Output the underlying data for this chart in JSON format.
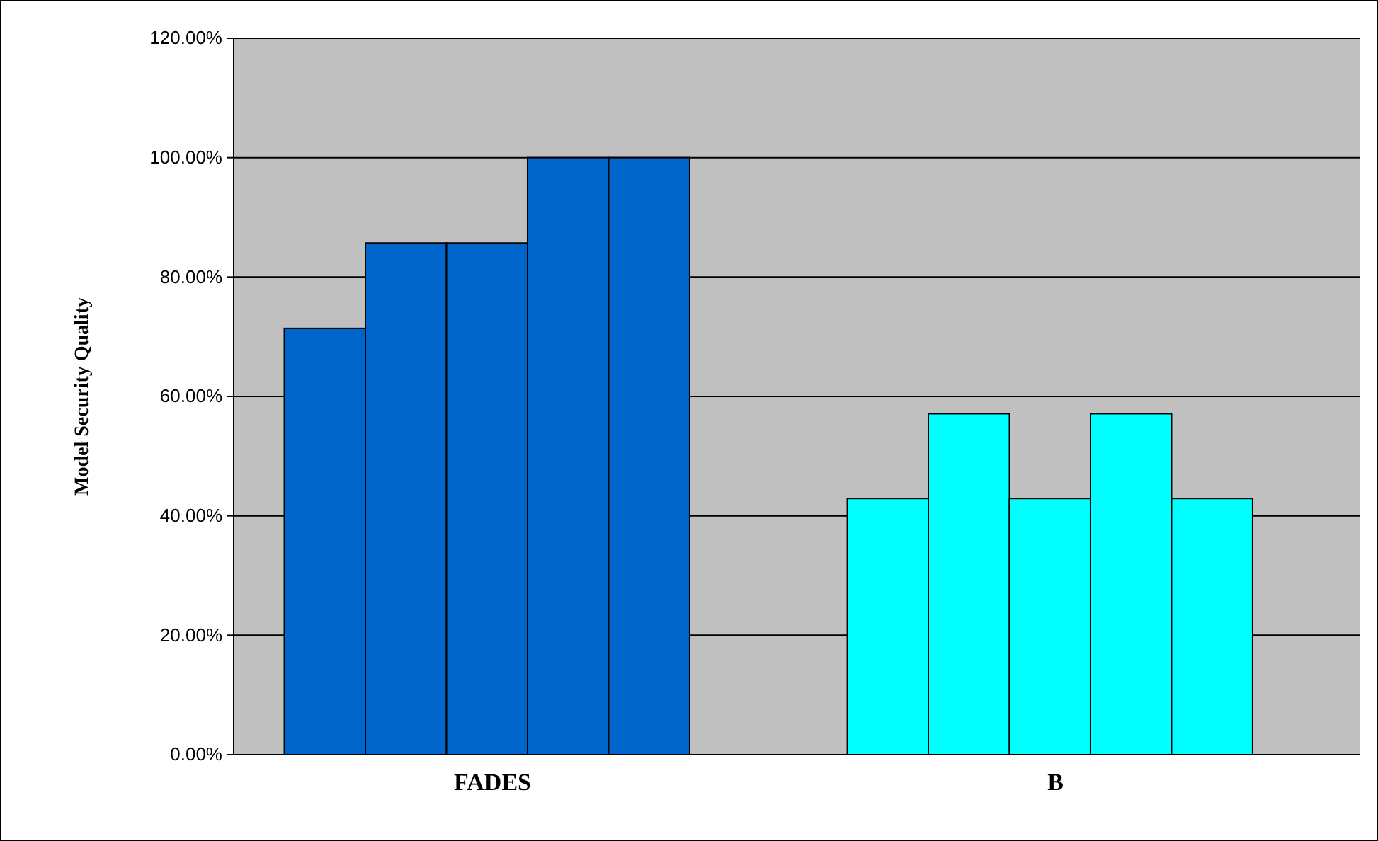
{
  "chart_data": {
    "type": "bar",
    "ylabel": "Model Security Quality",
    "categories": [
      "FADES",
      "B"
    ],
    "series": [
      {
        "colors": [
          "#0066cc",
          "#00ffff"
        ],
        "values": [
          71.4,
          42.9
        ]
      },
      {
        "colors": [
          "#0066cc",
          "#00ffff"
        ],
        "values": [
          85.7,
          57.1
        ]
      },
      {
        "colors": [
          "#0066cc",
          "#00ffff"
        ],
        "values": [
          85.7,
          42.9
        ]
      },
      {
        "colors": [
          "#0066cc",
          "#00ffff"
        ],
        "values": [
          100,
          57.1
        ]
      },
      {
        "colors": [
          "#0066cc",
          "#00ffff"
        ],
        "values": [
          100,
          42.9
        ]
      }
    ],
    "ylim": [
      0,
      120
    ],
    "yticks": [
      {
        "value": 0,
        "label": "0.00%"
      },
      {
        "value": 20,
        "label": "20.00%"
      },
      {
        "value": 40,
        "label": "40.00%"
      },
      {
        "value": 60,
        "label": "60.00%"
      },
      {
        "value": 80,
        "label": "80.00%"
      },
      {
        "value": 100,
        "label": "100.00%"
      },
      {
        "value": 120,
        "label": "120.00%"
      }
    ],
    "grid": "y"
  }
}
